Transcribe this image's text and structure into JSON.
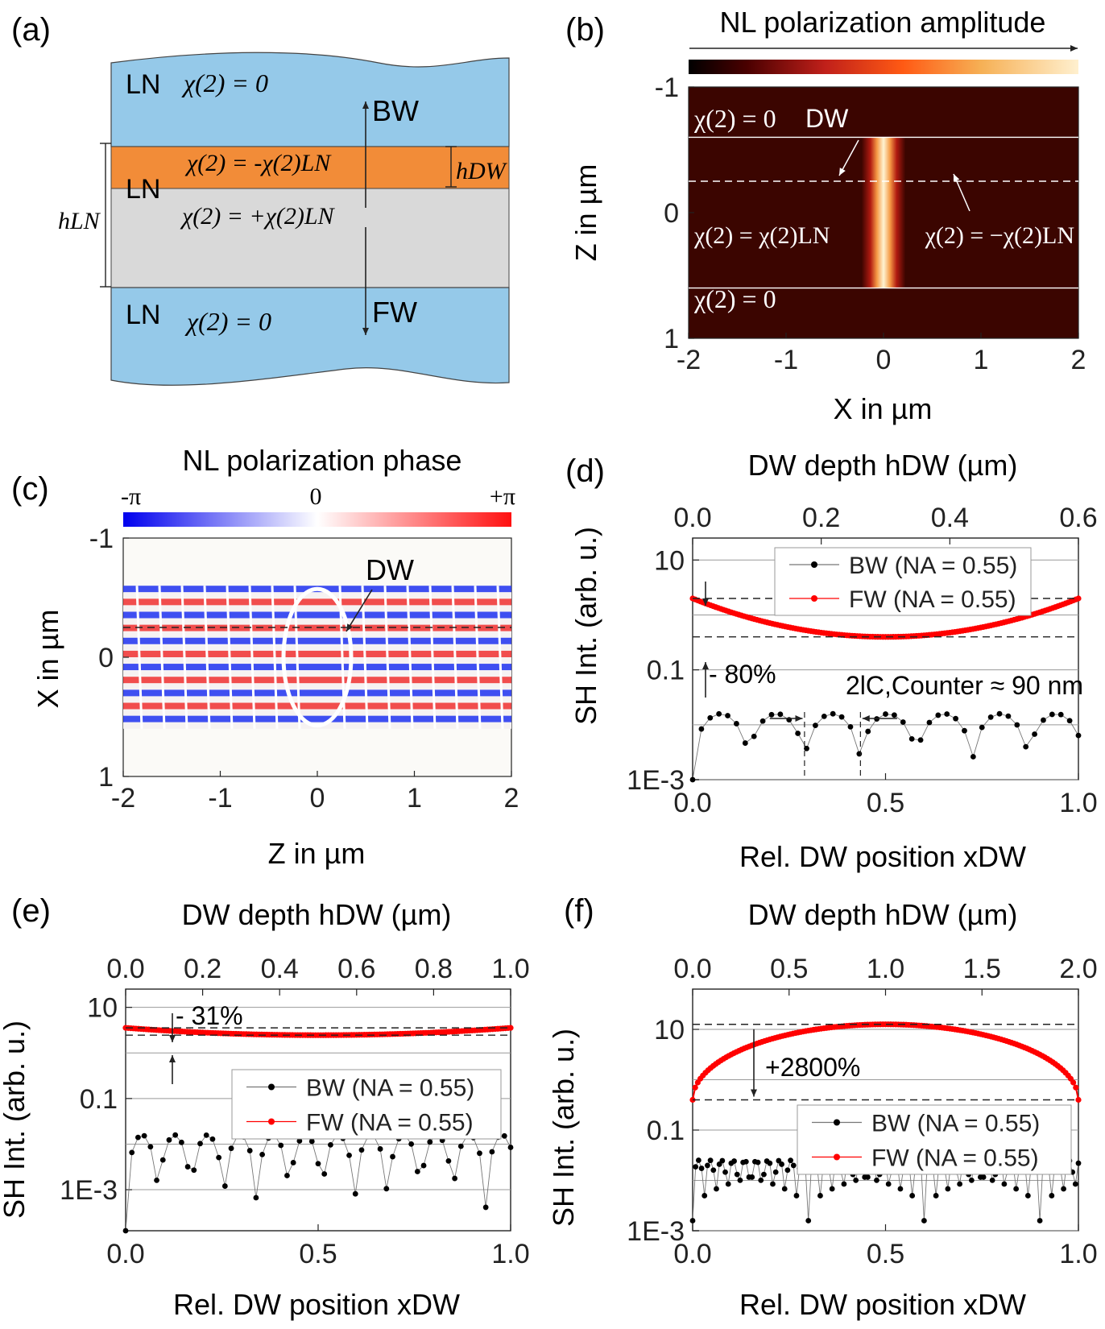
{
  "figure": {
    "panel_labels": [
      "(a)",
      "(b)",
      "(c)",
      "(d)",
      "(e)",
      "(f)"
    ]
  },
  "panel_a": {
    "top_layer": {
      "material": "LN",
      "chi": "χ(2) = 0"
    },
    "domain_wall_layer": {
      "material": "LN",
      "chi": "χ(2) = -χ(2)LN"
    },
    "bulk_layer": {
      "chi": "χ(2) = +χ(2)LN"
    },
    "bottom_layer": {
      "material": "LN",
      "chi": "χ(2) = 0"
    },
    "labels": {
      "bw": "BW",
      "fw": "FW",
      "h_dw": "hDW",
      "h_ln": "hLN"
    },
    "colors": {
      "ln": "#95c9e9",
      "dw": "#f28c38",
      "bulk": "#d9d9d9"
    }
  },
  "chart_data": [
    {
      "id": "b",
      "type": "heatmap",
      "title": "NL polarization amplitude",
      "xlabel": "X in µm",
      "ylabel": "Z in µm",
      "xlim": [
        -2,
        2
      ],
      "ylim": [
        -1,
        1
      ],
      "xticks": [
        "-2",
        "-1",
        "0",
        "1",
        "2"
      ],
      "yticks": [
        "-1",
        "0",
        "1"
      ],
      "annotations": [
        "χ(2) = 0",
        "DW",
        "χ(2) = χ(2)LN",
        "χ(2) = −χ(2)LN",
        "χ(2) = 0"
      ],
      "layer_boundaries_z": [
        -0.6,
        0.6
      ],
      "domain_wall_z": -0.25,
      "hotspot": {
        "x_center": 0.0,
        "x_width": 0.45,
        "z_range": [
          -0.6,
          0.6
        ]
      }
    },
    {
      "id": "c",
      "type": "heatmap",
      "title": "NL polarization phase",
      "colorbar_ticks": [
        "-π",
        "0",
        "+π"
      ],
      "xlabel": "Z in µm",
      "ylabel": "X in µm",
      "xlim": [
        -2,
        2
      ],
      "ylim": [
        -1,
        1
      ],
      "xticks": [
        "-2",
        "-1",
        "0",
        "1",
        "2"
      ],
      "yticks": [
        "-1",
        "0",
        "1"
      ],
      "annotations": [
        "DW"
      ],
      "pattern_x_range": [
        -0.6,
        0.6
      ],
      "domain_wall_x": -0.25
    },
    {
      "id": "d",
      "type": "line",
      "top_label": "DW depth hDW (µm)",
      "top_ticks": [
        "0.0",
        "0.2",
        "0.4",
        "0.6"
      ],
      "top_lim": [
        0,
        0.6
      ],
      "xlabel": "Rel. DW position xDW",
      "ylabel": "SH Int. (arb. u.)",
      "xticks": [
        "0.0",
        "0.5",
        "1.0"
      ],
      "yticks": [
        "1E-3",
        "0.1",
        "10"
      ],
      "ylim_log10": [
        -3,
        1.4
      ],
      "x_range": [
        0,
        1
      ],
      "series": [
        {
          "name": "BW (NA = 0.55)",
          "color": "#000000",
          "model": "periodic",
          "amp_log10": -1.8,
          "min_log10": -3.0,
          "period": 0.145
        },
        {
          "name": "FW (NA = 0.55)",
          "color": "#ff0000",
          "model": "parabola",
          "edge_log10": 0.3,
          "center_log10": -0.4
        }
      ],
      "annotations": [
        "- 80%",
        "2lC,Counter ≈ 90 nm"
      ]
    },
    {
      "id": "e",
      "type": "line",
      "top_label": "DW depth hDW (µm)",
      "top_ticks": [
        "0.0",
        "0.2",
        "0.4",
        "0.6",
        "0.8",
        "1.0"
      ],
      "top_lim": [
        0,
        1.0
      ],
      "xlabel": "Rel. DW position xDW",
      "ylabel": "SH Int. (arb. u.)",
      "xticks": [
        "0.0",
        "0.5",
        "1.0"
      ],
      "yticks": [
        "1E-3",
        "0.1",
        "10"
      ],
      "ylim_log10": [
        -3.9,
        1.4
      ],
      "x_range": [
        0,
        1
      ],
      "series": [
        {
          "name": "BW (NA = 0.55)",
          "color": "#000000",
          "model": "periodic",
          "amp_log10": -1.8,
          "min_log10": -3.9,
          "period": 0.085
        },
        {
          "name": "FW (NA = 0.55)",
          "color": "#ff0000",
          "model": "parabola",
          "edge_log10": 0.55,
          "center_log10": 0.39
        }
      ],
      "annotations": [
        "- 31%"
      ]
    },
    {
      "id": "f",
      "type": "line",
      "top_label": "DW depth hDW (µm)",
      "top_ticks": [
        "0.0",
        "0.5",
        "1.0",
        "1.5",
        "2.0"
      ],
      "top_lim": [
        0,
        2.0
      ],
      "xlabel": "Rel. DW position xDW",
      "ylabel": "SH Int. (arb. u.)",
      "xticks": [
        "0.0",
        "0.5",
        "1.0"
      ],
      "yticks": [
        "1E-3",
        "0.1",
        "10"
      ],
      "ylim_log10": [
        -3,
        1.8
      ],
      "x_range": [
        0,
        1
      ],
      "series": [
        {
          "name": "BW (NA = 0.55)",
          "color": "#000000",
          "model": "periodic",
          "amp_log10": -1.6,
          "min_log10": -2.8,
          "period": 0.03
        },
        {
          "name": "FW (NA = 0.55)",
          "color": "#ff0000",
          "model": "parabola",
          "edge_log10": -0.4,
          "center_log10": 1.1
        }
      ],
      "annotations": [
        "+2800%"
      ]
    }
  ]
}
